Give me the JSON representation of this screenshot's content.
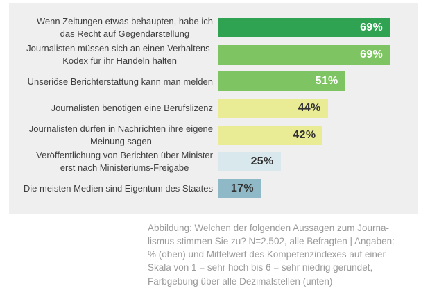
{
  "caption": {
    "text": "Abbildung: Welchen der folgenden Aussagen zum Journa-\nlismus stimmen Sie zu? N=2.502, alle Befragten | Angaben:\n% (oben) und Mittelwert des Kompetenzindexes auf einer\nSkala von 1 = sehr hoch bis 6 = sehr niedrig gerundet,\nFarbgebung über alle Dezimalstellen (unten)"
  },
  "chart_data": {
    "type": "bar",
    "orientation": "horizontal",
    "title": "",
    "xlabel": "",
    "ylabel": "",
    "unit": "%",
    "xlim": [
      0,
      80
    ],
    "grid": false,
    "legend": false,
    "categories": [
      "Wenn Zeitungen etwas behaupten, habe ich das Recht auf Gegendarstellung",
      "Journalisten müssen sich an einen Verhaltens-Kodex für ihr Handeln halten",
      "Unseriöse Berichterstattung kann man melden",
      "Journalisten benötigen eine Berufslizenz",
      "Journalisten dürfen in Nachrichten ihre eigene Meinung sagen",
      "Veröffentlichung von Berichten über Minister erst nach Ministeriums-Freigabe",
      "Die meisten Medien sind Eigentum des Staates"
    ],
    "values": [
      69,
      69,
      51,
      44,
      42,
      25,
      17
    ],
    "items": [
      {
        "label": "Wenn Zeitungen etwas behaupten, habe ich\ndas Recht auf Gegendarstellung",
        "value": 69,
        "display": "69%",
        "bar_color": "#2fa351",
        "value_color": "#ffffff"
      },
      {
        "label": "Journalisten müssen sich an einen Verhaltens-\nKodex für ihr Handeln halten",
        "value": 69,
        "display": "69%",
        "bar_color": "#7ec463",
        "value_color": "#ffffff"
      },
      {
        "label": "Unseriöse Berichterstattung kann man melden",
        "value": 51,
        "display": "51%",
        "bar_color": "#7ec463",
        "value_color": "#ffffff"
      },
      {
        "label": "Journalisten benötigen eine Berufslizenz",
        "value": 44,
        "display": "44%",
        "bar_color": "#e9ec94",
        "value_color": "#333333"
      },
      {
        "label": "Journalisten dürfen in Nachrichten ihre eigene\nMeinung sagen",
        "value": 42,
        "display": "42%",
        "bar_color": "#e9ec94",
        "value_color": "#333333"
      },
      {
        "label": "Veröffentlichung von Berichten über Minister\nerst nach Ministeriums-Freigabe",
        "value": 25,
        "display": "25%",
        "bar_color": "#d9e8ec",
        "value_color": "#333333"
      },
      {
        "label": "Die meisten Medien sind Eigentum des Staates",
        "value": 17,
        "display": "17%",
        "bar_color": "#8fb9c6",
        "value_color": "#333333"
      }
    ],
    "colors": {
      "panel_bg": "#efefef",
      "label_text": "#3e3e3e",
      "caption_text": "#9a9a9a"
    }
  }
}
